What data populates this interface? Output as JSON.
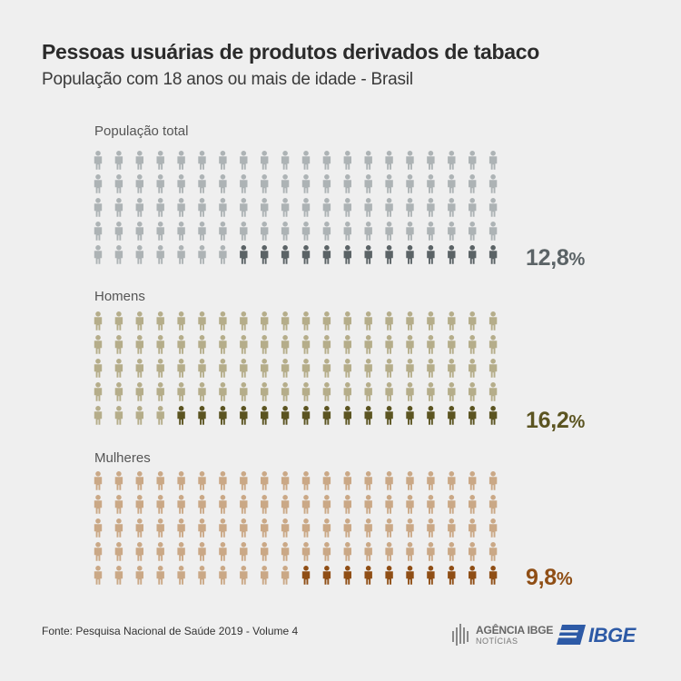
{
  "title": "Pessoas usuárias de produtos derivados de tabaco",
  "subtitle": "População com 18 anos ou mais de idade - Brasil",
  "footer": "Fonte: Pesquisa Nacional de Saúde 2019 - Volume 4",
  "logos": {
    "agencia_name": "AGÊNCIA IBGE",
    "agencia_sub": "NOTÍCIAS",
    "ibge": "IBGE"
  },
  "colors": {
    "background": "#efefef",
    "total_light": "#adb3b5",
    "total_dark": "#5b6366",
    "homens_light": "#b5ad8a",
    "homens_dark": "#5b5421",
    "mulheres_light": "#caa886",
    "mulheres_dark": "#8f4e15",
    "ibge_blue": "#2d5aa6"
  },
  "chart_data": {
    "type": "pictogram",
    "unit": "%",
    "figures_per_panel": 100,
    "panels": [
      {
        "label": "População total",
        "value": 12.8,
        "display": "12,8",
        "shaded_figures": 13
      },
      {
        "label": "Homens",
        "value": 16.2,
        "display": "16,2",
        "shaded_figures": 16
      },
      {
        "label": "Mulheres",
        "value": 9.8,
        "display": "9,8",
        "shaded_figures": 10
      }
    ]
  }
}
